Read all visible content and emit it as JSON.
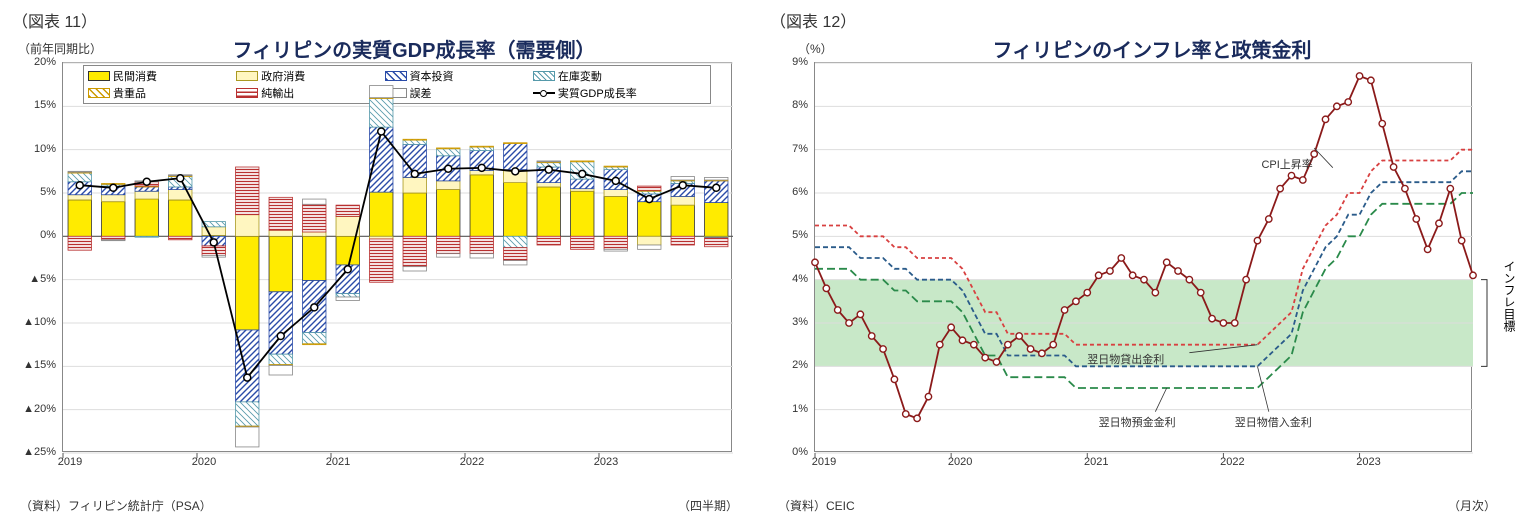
{
  "chart11": {
    "fig_label": "（図表 11）",
    "y_unit": "（前年同期比）",
    "title": "フィリピンの実質GDP成長率（需要側）",
    "source": "（資料）フィリピン統計庁（PSA）",
    "x_unit": "（四半期）",
    "ylim": [
      -25,
      20
    ],
    "ytick_step": 5,
    "yticks": [
      {
        "v": 20,
        "l": "20%"
      },
      {
        "v": 15,
        "l": "15%"
      },
      {
        "v": 10,
        "l": "10%"
      },
      {
        "v": 5,
        "l": "5%"
      },
      {
        "v": 0,
        "l": "0%"
      },
      {
        "v": -5,
        "l": "▲5%"
      },
      {
        "v": -10,
        "l": "▲10%"
      },
      {
        "v": -15,
        "l": "▲15%"
      },
      {
        "v": -20,
        "l": "▲20%"
      },
      {
        "v": -25,
        "l": "▲25%"
      }
    ],
    "years": [
      "2019",
      "2020",
      "2021",
      "2022",
      "2023"
    ],
    "colors": {
      "private": {
        "fill": "#ffeb00",
        "border": "#333",
        "pattern": "none",
        "label": "民間消費"
      },
      "govt": {
        "fill": "#fff6c0",
        "border": "#aa9922",
        "pattern": "none",
        "label": "政府消費"
      },
      "capital": {
        "fill": "#ffffff",
        "border": "#2a4ba8",
        "pattern": "diag-blue",
        "label": "資本投資"
      },
      "inventory": {
        "fill": "#b8def0",
        "border": "#5599aa",
        "pattern": "hatch-light",
        "label": "在庫変動"
      },
      "valuables": {
        "fill": "#ffffff",
        "border": "#cc9900",
        "pattern": "diag-gold",
        "label": "貴重品"
      },
      "netexport": {
        "fill": "#ffffff",
        "border": "#b83030",
        "pattern": "horiz-red",
        "label": "純輸出"
      },
      "error": {
        "fill": "#ffffff",
        "border": "#888",
        "pattern": "none",
        "label": "誤差"
      },
      "gdp_line": {
        "stroke": "#000",
        "label": "実質GDP成長率"
      }
    },
    "quarters": [
      {
        "p": {
          "private": 4.2,
          "govt": 0.6,
          "capital": 1.5,
          "inventory": 1.0,
          "valuables": 0.1,
          "netexport": -1.6,
          "error": 0.1
        },
        "gdp": 5.9
      },
      {
        "p": {
          "private": 4.0,
          "govt": 0.8,
          "capital": 1.0,
          "inventory": 0.2,
          "valuables": 0.1,
          "netexport": -0.4,
          "error": -0.1
        },
        "gdp": 5.6
      },
      {
        "p": {
          "private": 4.3,
          "govt": 0.9,
          "capital": 0.5,
          "inventory": -0.1,
          "valuables": 0.1,
          "netexport": 0.5,
          "error": 0.1
        },
        "gdp": 6.3
      },
      {
        "p": {
          "private": 4.2,
          "govt": 1.2,
          "capital": 0.3,
          "inventory": 1.2,
          "valuables": 0.1,
          "netexport": -0.4,
          "error": 0.1
        },
        "gdp": 6.7
      },
      {
        "p": {
          "private": 0.1,
          "govt": 1.0,
          "capital": -1.1,
          "inventory": 0.6,
          "valuables": 0.0,
          "netexport": -1.1,
          "error": -0.2
        },
        "gdp": -0.7
      },
      {
        "p": {
          "private": -10.8,
          "govt": 2.5,
          "capital": -8.3,
          "inventory": -2.8,
          "valuables": -0.1,
          "netexport": 5.5,
          "error": -2.3
        },
        "gdp": -16.3
      },
      {
        "p": {
          "private": -6.4,
          "govt": 0.7,
          "capital": -7.2,
          "inventory": -1.2,
          "valuables": -0.1,
          "netexport": 3.8,
          "error": -1.1
        },
        "gdp": -11.5
      },
      {
        "p": {
          "private": -5.1,
          "govt": 0.5,
          "capital": -6.0,
          "inventory": -1.3,
          "valuables": -0.1,
          "netexport": 3.2,
          "error": 0.6
        },
        "gdp": -8.2
      },
      {
        "p": {
          "private": -3.3,
          "govt": 2.3,
          "capital": -3.3,
          "inventory": -0.4,
          "valuables": 0.0,
          "netexport": 1.3,
          "error": -0.4
        },
        "gdp": -3.8
      },
      {
        "p": {
          "private": 5.1,
          "govt": -0.3,
          "capital": 7.5,
          "inventory": 3.3,
          "valuables": 0.1,
          "netexport": -5.0,
          "error": 1.4
        },
        "gdp": 12.1
      },
      {
        "p": {
          "private": 5.0,
          "govt": 1.8,
          "capital": 3.8,
          "inventory": 0.5,
          "valuables": 0.1,
          "netexport": -3.5,
          "error": -0.5
        },
        "gdp": 7.2
      },
      {
        "p": {
          "private": 5.4,
          "govt": 1.0,
          "capital": 2.9,
          "inventory": 0.8,
          "valuables": 0.1,
          "netexport": -2.0,
          "error": -0.4
        },
        "gdp": 7.8
      },
      {
        "p": {
          "private": 7.1,
          "govt": 0.5,
          "capital": 2.3,
          "inventory": 0.4,
          "valuables": 0.1,
          "netexport": -2.0,
          "error": -0.5
        },
        "gdp": 7.9
      },
      {
        "p": {
          "private": 6.2,
          "govt": 1.5,
          "capital": 3.0,
          "inventory": -1.3,
          "valuables": 0.1,
          "netexport": -1.5,
          "error": -0.5
        },
        "gdp": 7.5
      },
      {
        "p": {
          "private": 5.7,
          "govt": 0.5,
          "capital": 1.8,
          "inventory": 0.5,
          "valuables": 0.1,
          "netexport": -1.0,
          "error": 0.1
        },
        "gdp": 7.7
      },
      {
        "p": {
          "private": 5.2,
          "govt": 0.3,
          "capital": 1.1,
          "inventory": 2.0,
          "valuables": 0.1,
          "netexport": -1.5,
          "error": 0.0
        },
        "gdp": 7.2
      },
      {
        "p": {
          "private": 4.6,
          "govt": 0.8,
          "capital": 2.3,
          "inventory": 0.3,
          "valuables": 0.1,
          "netexport": -1.5,
          "error": -0.2
        },
        "gdp": 6.4
      },
      {
        "p": {
          "private": 4.0,
          "govt": -1.0,
          "capital": 0.9,
          "inventory": 0.3,
          "valuables": 0.1,
          "netexport": 0.5,
          "error": -0.5
        },
        "gdp": 4.3
      },
      {
        "p": {
          "private": 3.6,
          "govt": 1.0,
          "capital": 1.5,
          "inventory": 0.3,
          "valuables": 0.1,
          "netexport": -1.0,
          "error": 0.4
        },
        "gdp": 5.9
      },
      {
        "p": {
          "private": 3.9,
          "govt": -0.1,
          "capital": 2.5,
          "inventory": -0.1,
          "valuables": 0.1,
          "netexport": -1.0,
          "error": 0.3
        },
        "gdp": 5.6
      }
    ]
  },
  "chart12": {
    "fig_label": "（図表 12）",
    "y_unit": "（%）",
    "title": "フィリピンのインフレ率と政策金利",
    "source": "（資料）CEIC",
    "x_unit": "（月次）",
    "ylim": [
      0,
      9
    ],
    "ytick_step": 1,
    "years": [
      "2019",
      "2020",
      "2021",
      "2022",
      "2023"
    ],
    "target_band": {
      "low": 2,
      "high": 4,
      "color": "#c8e8c8",
      "label": "インフレ目標"
    },
    "colors": {
      "cpi": {
        "stroke": "#8b1a1a",
        "label": "CPI上昇率"
      },
      "lending": {
        "stroke": "#d84040",
        "dash": "4,3",
        "label": "翌日物貸出金利"
      },
      "borrow": {
        "stroke": "#2a5b8a",
        "dash": "5,3",
        "label": "翌日物借入金利"
      },
      "deposit": {
        "stroke": "#2a8a4a",
        "dash": "8,4",
        "label": "翌日物預金金利"
      }
    },
    "cpi": [
      4.4,
      3.8,
      3.3,
      3.0,
      3.2,
      2.7,
      2.4,
      1.7,
      0.9,
      0.8,
      1.3,
      2.5,
      2.9,
      2.6,
      2.5,
      2.2,
      2.1,
      2.5,
      2.7,
      2.4,
      2.3,
      2.5,
      3.3,
      3.5,
      3.7,
      4.1,
      4.2,
      4.5,
      4.1,
      4.0,
      3.7,
      4.4,
      4.2,
      4.0,
      3.7,
      3.1,
      3.0,
      3.0,
      4.0,
      4.9,
      5.4,
      6.1,
      6.4,
      6.3,
      6.9,
      7.7,
      8.0,
      8.1,
      8.7,
      8.6,
      7.6,
      6.6,
      6.1,
      5.4,
      4.7,
      5.3,
      6.1,
      4.9,
      4.1
    ],
    "lending": [
      5.25,
      5.25,
      5.25,
      5.25,
      5.0,
      5.0,
      5.0,
      4.75,
      4.75,
      4.5,
      4.5,
      4.5,
      4.5,
      4.25,
      3.75,
      3.25,
      3.25,
      2.75,
      2.75,
      2.75,
      2.75,
      2.75,
      2.75,
      2.5,
      2.5,
      2.5,
      2.5,
      2.5,
      2.5,
      2.5,
      2.5,
      2.5,
      2.5,
      2.5,
      2.5,
      2.5,
      2.5,
      2.5,
      2.5,
      2.5,
      2.75,
      3.0,
      3.25,
      4.25,
      4.75,
      5.25,
      5.5,
      6.0,
      6.0,
      6.5,
      6.75,
      6.75,
      6.75,
      6.75,
      6.75,
      6.75,
      6.75,
      7.0,
      7.0
    ],
    "borrow": [
      4.75,
      4.75,
      4.75,
      4.75,
      4.5,
      4.5,
      4.5,
      4.25,
      4.25,
      4.0,
      4.0,
      4.0,
      4.0,
      3.75,
      3.25,
      2.75,
      2.75,
      2.25,
      2.25,
      2.25,
      2.25,
      2.25,
      2.25,
      2.0,
      2.0,
      2.0,
      2.0,
      2.0,
      2.0,
      2.0,
      2.0,
      2.0,
      2.0,
      2.0,
      2.0,
      2.0,
      2.0,
      2.0,
      2.0,
      2.0,
      2.25,
      2.5,
      2.75,
      3.75,
      4.25,
      4.75,
      5.0,
      5.5,
      5.5,
      6.0,
      6.25,
      6.25,
      6.25,
      6.25,
      6.25,
      6.25,
      6.25,
      6.5,
      6.5
    ],
    "deposit": [
      4.25,
      4.25,
      4.25,
      4.25,
      4.0,
      4.0,
      4.0,
      3.75,
      3.75,
      3.5,
      3.5,
      3.5,
      3.5,
      3.25,
      2.75,
      2.25,
      2.25,
      1.75,
      1.75,
      1.75,
      1.75,
      1.75,
      1.75,
      1.5,
      1.5,
      1.5,
      1.5,
      1.5,
      1.5,
      1.5,
      1.5,
      1.5,
      1.5,
      1.5,
      1.5,
      1.5,
      1.5,
      1.5,
      1.5,
      1.5,
      1.75,
      2.0,
      2.25,
      3.25,
      3.75,
      4.25,
      4.5,
      5.0,
      5.0,
      5.5,
      5.75,
      5.75,
      5.75,
      5.75,
      5.75,
      5.75,
      5.75,
      6.0,
      6.0
    ]
  }
}
